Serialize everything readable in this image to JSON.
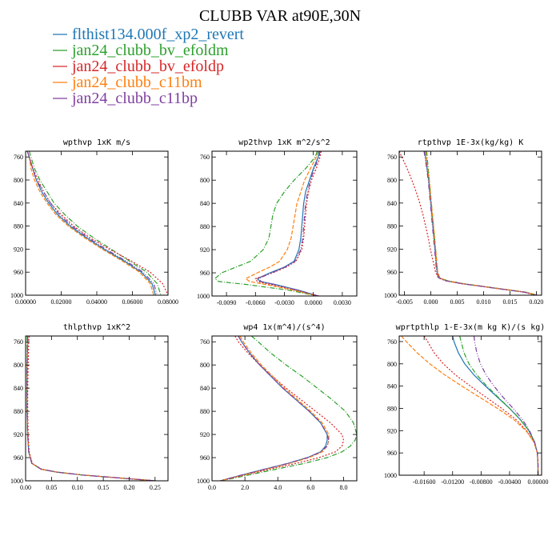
{
  "title": "CLUBB VAR at90E,30N",
  "colors": {
    "flthist134.000f_xp2_revert": "#1f77b4",
    "jan24_clubb_bv_efoldm": "#2ca02c",
    "jan24_clubb_bv_efoldp": "#d62728",
    "jan24_clubb_c11bm": "#ff7f0e",
    "jan24_clubb_c11bp": "#7f3fa0"
  },
  "legend": [
    {
      "label": "flthist134.000f_xp2_revert",
      "color": "#1f77b4",
      "dash": "none"
    },
    {
      "label": "jan24_clubb_bv_efoldm",
      "color": "#2ca02c",
      "dash": "6,2,1,2"
    },
    {
      "label": "jan24_clubb_bv_efoldp",
      "color": "#d62728",
      "dash": "2,2"
    },
    {
      "label": "jan24_clubb_c11bm",
      "color": "#ff7f0e",
      "dash": "5,2"
    },
    {
      "label": "jan24_clubb_c11bp",
      "color": "#7f3fa0",
      "dash": "6,2,1,2,1,2"
    }
  ],
  "chart_data": [
    {
      "type": "line",
      "title": "wpthvp  1xK m/s",
      "xlim": [
        0.0,
        0.08
      ],
      "ylim": [
        1000,
        750
      ],
      "xticks": [
        "0.00000",
        "0.02000",
        "0.04000",
        "0.06000",
        "0.08000"
      ],
      "xtick_values": [
        0.0,
        0.02,
        0.04,
        0.06,
        0.08
      ],
      "yticks": [
        "760",
        "800",
        "840",
        "880",
        "920",
        "960",
        "1000"
      ],
      "ytick_values": [
        760,
        800,
        840,
        880,
        920,
        960,
        1000
      ],
      "y": [
        750,
        760,
        780,
        800,
        820,
        840,
        860,
        880,
        900,
        920,
        940,
        960,
        980,
        1000
      ],
      "series": [
        {
          "name": "flthist134.000f_xp2_revert",
          "values": [
            0.001,
            0.002,
            0.004,
            0.006,
            0.009,
            0.013,
            0.018,
            0.025,
            0.034,
            0.044,
            0.055,
            0.065,
            0.071,
            0.073
          ]
        },
        {
          "name": "jan24_clubb_bv_efoldm",
          "values": [
            0.002,
            0.003,
            0.005,
            0.008,
            0.012,
            0.016,
            0.022,
            0.029,
            0.038,
            0.048,
            0.058,
            0.068,
            0.074,
            0.076
          ]
        },
        {
          "name": "jan24_clubb_bv_efoldp",
          "values": [
            0.001,
            0.002,
            0.004,
            0.007,
            0.01,
            0.014,
            0.02,
            0.027,
            0.036,
            0.047,
            0.059,
            0.07,
            0.077,
            0.08
          ]
        },
        {
          "name": "jan24_clubb_c11bm",
          "values": [
            0.001,
            0.002,
            0.003,
            0.005,
            0.008,
            0.012,
            0.017,
            0.024,
            0.033,
            0.043,
            0.054,
            0.064,
            0.07,
            0.072
          ]
        },
        {
          "name": "jan24_clubb_c11bp",
          "values": [
            0.001,
            0.002,
            0.004,
            0.006,
            0.01,
            0.014,
            0.019,
            0.026,
            0.035,
            0.045,
            0.056,
            0.066,
            0.072,
            0.074
          ]
        }
      ]
    },
    {
      "type": "line",
      "title": "wp2thvp  1xK m^2/s^2",
      "xlim": [
        -0.0105,
        0.0045
      ],
      "ylim": [
        1000,
        750
      ],
      "xticks": [
        "-0.0090",
        "-0.0060",
        "-0.0030",
        "0.0000",
        "0.0030"
      ],
      "xtick_values": [
        -0.009,
        -0.006,
        -0.003,
        0.0,
        0.003
      ],
      "yticks": [
        "760",
        "800",
        "840",
        "880",
        "920",
        "960",
        "1000"
      ],
      "ytick_values": [
        760,
        800,
        840,
        880,
        920,
        960,
        1000
      ],
      "y": [
        750,
        760,
        780,
        800,
        820,
        840,
        860,
        880,
        900,
        920,
        940,
        950,
        960,
        970,
        975,
        980,
        990,
        1000
      ],
      "series": [
        {
          "name": "flthist134.000f_xp2_revert",
          "values": [
            0.0006,
            0.0005,
            0.0,
            -0.0004,
            -0.0008,
            -0.001,
            -0.0011,
            -0.0012,
            -0.0013,
            -0.0015,
            -0.002,
            -0.003,
            -0.0045,
            -0.0058,
            -0.0055,
            -0.004,
            -0.0015,
            0.0005
          ]
        },
        {
          "name": "jan24_clubb_bv_efoldm",
          "values": [
            0.0004,
            0.0002,
            -0.0008,
            -0.002,
            -0.003,
            -0.0038,
            -0.0042,
            -0.0044,
            -0.0046,
            -0.0052,
            -0.0065,
            -0.008,
            -0.0095,
            -0.0102,
            -0.0098,
            -0.007,
            -0.0025,
            0.0004
          ]
        },
        {
          "name": "jan24_clubb_bv_efoldp",
          "values": [
            0.0008,
            0.0007,
            0.0003,
            -0.0002,
            -0.0005,
            -0.0007,
            -0.0008,
            -0.0009,
            -0.001,
            -0.0012,
            -0.0018,
            -0.0028,
            -0.0042,
            -0.006,
            -0.0058,
            -0.0045,
            -0.0018,
            0.0006
          ]
        },
        {
          "name": "jan24_clubb_c11bm",
          "values": [
            0.0005,
            0.0003,
            -0.0003,
            -0.0009,
            -0.0013,
            -0.0017,
            -0.0019,
            -0.0021,
            -0.0023,
            -0.0027,
            -0.0035,
            -0.0045,
            -0.0058,
            -0.007,
            -0.0066,
            -0.005,
            -0.002,
            0.0004
          ]
        },
        {
          "name": "jan24_clubb_c11bp",
          "values": [
            0.0007,
            0.0006,
            0.0001,
            -0.0003,
            -0.0006,
            -0.0008,
            -0.0009,
            -0.001,
            -0.0011,
            -0.0013,
            -0.0019,
            -0.0029,
            -0.0043,
            -0.0057,
            -0.0054,
            -0.0041,
            -0.0016,
            0.0005
          ]
        }
      ]
    },
    {
      "type": "line",
      "title": "rtpthvp  1E-3x(kg/kg) K",
      "xlim": [
        -0.006,
        0.021
      ],
      "ylim": [
        1000,
        750
      ],
      "xticks": [
        "-0.005",
        "0.000",
        "0.005",
        "0.010",
        "0.015",
        "0.020"
      ],
      "xtick_values": [
        -0.005,
        0.0,
        0.005,
        0.01,
        0.015,
        0.02
      ],
      "yticks": [
        "760",
        "800",
        "840",
        "880",
        "920",
        "960",
        "1000"
      ],
      "ytick_values": [
        760,
        800,
        840,
        880,
        920,
        960,
        1000
      ],
      "y": [
        750,
        760,
        780,
        800,
        820,
        840,
        860,
        880,
        900,
        920,
        940,
        960,
        970,
        975,
        980,
        985,
        990,
        995,
        1000
      ],
      "series": [
        {
          "name": "flthist134.000f_xp2_revert",
          "values": [
            -0.0012,
            -0.001,
            -0.0007,
            -0.0004,
            -0.0002,
            0.0,
            0.0002,
            0.0004,
            0.0006,
            0.0008,
            0.001,
            0.0012,
            0.0016,
            0.003,
            0.006,
            0.01,
            0.014,
            0.018,
            0.02
          ]
        },
        {
          "name": "jan24_clubb_bv_efoldm",
          "values": [
            -0.0008,
            -0.0007,
            -0.0005,
            -0.0003,
            -0.0001,
            0.0001,
            0.0003,
            0.0005,
            0.0007,
            0.0009,
            0.0011,
            0.0013,
            0.0017,
            0.0032,
            0.0062,
            0.0102,
            0.0142,
            0.0182,
            0.0202
          ]
        },
        {
          "name": "jan24_clubb_bv_efoldp",
          "values": [
            -0.006,
            -0.0055,
            -0.0045,
            -0.0036,
            -0.0028,
            -0.0021,
            -0.0015,
            -0.001,
            -0.0005,
            -0.0001,
            0.0004,
            0.0009,
            0.0014,
            0.0028,
            0.0058,
            0.0098,
            0.0138,
            0.0178,
            0.0198
          ]
        },
        {
          "name": "jan24_clubb_c11bm",
          "values": [
            -0.001,
            -0.0009,
            -0.0006,
            -0.0003,
            -0.0001,
            0.0001,
            0.0003,
            0.0005,
            0.0007,
            0.0009,
            0.0011,
            0.0013,
            0.0017,
            0.0031,
            0.0061,
            0.0101,
            0.0141,
            0.0181,
            0.0201
          ]
        },
        {
          "name": "jan24_clubb_c11bp",
          "values": [
            -0.0013,
            -0.0011,
            -0.0008,
            -0.0005,
            -0.0003,
            -0.0001,
            0.0001,
            0.0003,
            0.0005,
            0.0007,
            0.0009,
            0.0011,
            0.0015,
            0.0029,
            0.0059,
            0.0099,
            0.0139,
            0.0179,
            0.0199
          ]
        }
      ]
    },
    {
      "type": "line",
      "title": "thlpthvp  1xK^2",
      "xlim": [
        0.0,
        0.275
      ],
      "ylim": [
        1000,
        750
      ],
      "xticks": [
        "0.00",
        "0.05",
        "0.10",
        "0.15",
        "0.20",
        "0.25"
      ],
      "xtick_values": [
        0.0,
        0.05,
        0.1,
        0.15,
        0.2,
        0.25
      ],
      "yticks": [
        "760",
        "800",
        "840",
        "880",
        "920",
        "960",
        "1000"
      ],
      "ytick_values": [
        760,
        800,
        840,
        880,
        920,
        960,
        1000
      ],
      "y": [
        750,
        760,
        800,
        840,
        880,
        920,
        950,
        970,
        980,
        985,
        990,
        995,
        1000
      ],
      "series": [
        {
          "name": "flthist134.000f_xp2_revert",
          "values": [
            0.004,
            0.004,
            0.003,
            0.003,
            0.003,
            0.004,
            0.006,
            0.012,
            0.03,
            0.06,
            0.11,
            0.18,
            0.25
          ]
        },
        {
          "name": "jan24_clubb_bv_efoldm",
          "values": [
            0.003,
            0.003,
            0.003,
            0.003,
            0.003,
            0.004,
            0.006,
            0.012,
            0.03,
            0.06,
            0.11,
            0.18,
            0.25
          ]
        },
        {
          "name": "jan24_clubb_bv_efoldp",
          "values": [
            0.007,
            0.006,
            0.005,
            0.004,
            0.004,
            0.005,
            0.007,
            0.013,
            0.031,
            0.061,
            0.111,
            0.181,
            0.252
          ]
        },
        {
          "name": "jan24_clubb_c11bm",
          "values": [
            0.004,
            0.004,
            0.003,
            0.003,
            0.003,
            0.004,
            0.006,
            0.012,
            0.03,
            0.06,
            0.11,
            0.18,
            0.25
          ]
        },
        {
          "name": "jan24_clubb_c11bp",
          "values": [
            0.004,
            0.004,
            0.003,
            0.003,
            0.003,
            0.004,
            0.006,
            0.012,
            0.03,
            0.06,
            0.11,
            0.18,
            0.25
          ]
        }
      ]
    },
    {
      "type": "line",
      "title": "wp4  1x(m^4)/(s^4)",
      "xlim": [
        0.0,
        8.8
      ],
      "ylim": [
        1000,
        750
      ],
      "xticks": [
        "0.0",
        "2.0",
        "4.0",
        "6.0",
        "8.0"
      ],
      "xtick_values": [
        0.0,
        2.0,
        4.0,
        6.0,
        8.0
      ],
      "yticks": [
        "760",
        "800",
        "840",
        "880",
        "920",
        "960",
        "1000"
      ],
      "ytick_values": [
        760,
        800,
        840,
        880,
        920,
        960,
        1000
      ],
      "y": [
        750,
        760,
        780,
        800,
        820,
        840,
        860,
        880,
        900,
        920,
        930,
        940,
        950,
        960,
        970,
        980,
        990,
        1000
      ],
      "series": [
        {
          "name": "flthist134.000f_xp2_revert",
          "values": [
            1.6,
            1.8,
            2.3,
            2.9,
            3.6,
            4.3,
            5.1,
            5.9,
            6.6,
            7.0,
            7.0,
            6.9,
            6.6,
            5.8,
            4.6,
            3.2,
            1.8,
            0.5
          ]
        },
        {
          "name": "jan24_clubb_bv_efoldm",
          "values": [
            2.4,
            2.8,
            3.6,
            4.5,
            5.5,
            6.4,
            7.3,
            8.1,
            8.6,
            8.8,
            8.7,
            8.4,
            7.9,
            7.0,
            5.6,
            3.9,
            2.2,
            0.6
          ]
        },
        {
          "name": "jan24_clubb_bv_efoldp",
          "values": [
            1.4,
            1.6,
            2.2,
            2.9,
            3.7,
            4.5,
            5.4,
            6.3,
            7.2,
            7.9,
            8.0,
            7.9,
            7.5,
            6.5,
            5.1,
            3.5,
            2.0,
            0.5
          ]
        },
        {
          "name": "jan24_clubb_c11bm",
          "values": [
            1.7,
            1.9,
            2.4,
            3.0,
            3.7,
            4.4,
            5.2,
            6.0,
            6.7,
            7.1,
            7.1,
            7.0,
            6.7,
            5.9,
            4.7,
            3.3,
            1.9,
            0.5
          ]
        },
        {
          "name": "jan24_clubb_c11bp",
          "values": [
            1.6,
            1.8,
            2.3,
            2.9,
            3.6,
            4.3,
            5.1,
            5.9,
            6.6,
            7.0,
            7.1,
            7.0,
            6.6,
            5.8,
            4.6,
            3.2,
            1.8,
            0.5
          ]
        }
      ]
    },
    {
      "type": "line",
      "title": "wprtpthlp  1-E-3x(m kg K)/(s kg)",
      "xlim": [
        -0.0195,
        0.0005
      ],
      "ylim": [
        1000,
        750
      ],
      "xticks": [
        "-0.01600",
        "-0.01200",
        "-0.00800",
        "-0.00400",
        "0.00000"
      ],
      "xtick_values": [
        -0.016,
        -0.012,
        -0.008,
        -0.004,
        0.0
      ],
      "yticks": [
        "760",
        "800",
        "840",
        "880",
        "920",
        "960",
        "1000"
      ],
      "ytick_values": [
        760,
        800,
        840,
        880,
        920,
        960,
        1000
      ],
      "y": [
        750,
        760,
        780,
        800,
        820,
        840,
        860,
        880,
        900,
        920,
        940,
        960,
        980,
        1000
      ],
      "series": [
        {
          "name": "flthist134.000f_xp2_revert",
          "values": [
            -0.012,
            -0.0118,
            -0.0112,
            -0.0103,
            -0.009,
            -0.0074,
            -0.0057,
            -0.004,
            -0.0025,
            -0.0013,
            -0.0005,
            -0.0001,
            0.0,
            0.0
          ]
        },
        {
          "name": "jan24_clubb_bv_efoldm",
          "values": [
            -0.011,
            -0.0108,
            -0.0104,
            -0.0097,
            -0.0086,
            -0.0072,
            -0.0056,
            -0.004,
            -0.0025,
            -0.0013,
            -0.0005,
            -0.0001,
            0.0,
            0.0
          ]
        },
        {
          "name": "jan24_clubb_bv_efoldp",
          "values": [
            -0.016,
            -0.0155,
            -0.0146,
            -0.0133,
            -0.0116,
            -0.0095,
            -0.0073,
            -0.0051,
            -0.0031,
            -0.0016,
            -0.0006,
            -0.0001,
            0.0,
            0.0
          ]
        },
        {
          "name": "jan24_clubb_c11bm",
          "values": [
            -0.0192,
            -0.0185,
            -0.017,
            -0.0152,
            -0.0131,
            -0.0107,
            -0.0082,
            -0.0057,
            -0.0034,
            -0.0017,
            -0.0006,
            -0.0001,
            0.0,
            0.0
          ]
        },
        {
          "name": "jan24_clubb_c11bp",
          "values": [
            -0.009,
            -0.0089,
            -0.0086,
            -0.0081,
            -0.0073,
            -0.0062,
            -0.0049,
            -0.0035,
            -0.0022,
            -0.0012,
            -0.0005,
            -0.0001,
            0.0,
            0.0
          ]
        }
      ]
    }
  ]
}
